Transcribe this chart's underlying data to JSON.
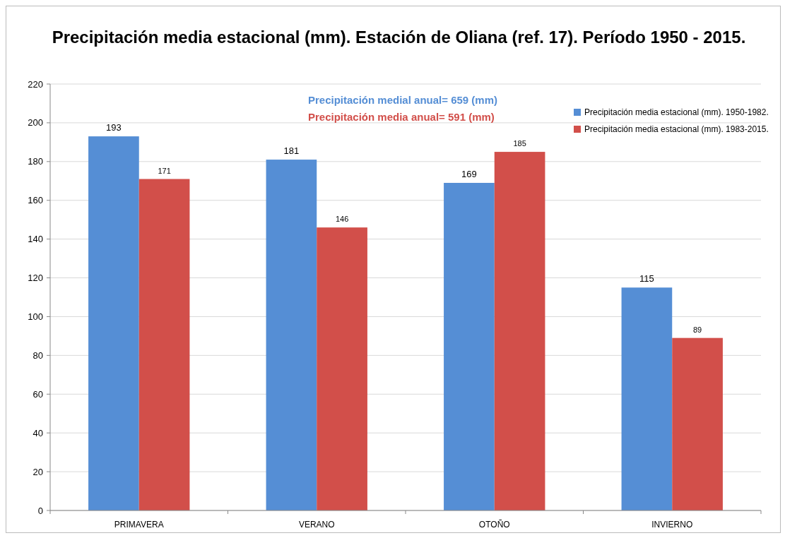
{
  "chart_data": {
    "type": "bar",
    "title": "Precipitación media estacional (mm). Estación de Oliana (ref. 17). Período 1950 - 2015.",
    "categories": [
      "PRIMAVERA",
      "VERANO",
      "OTOÑO",
      "INVIERNO"
    ],
    "series": [
      {
        "name": "Precipitación media estacional (mm). 1950-1982.",
        "color": "#558ed5",
        "values": [
          193,
          181,
          169,
          115
        ]
      },
      {
        "name": "Precipitación media estacional (mm). 1983-2015.",
        "color": "#d24f4a",
        "values": [
          171,
          146,
          185,
          89
        ]
      }
    ],
    "annotations": [
      "Precipitación medial anual= 659 (mm)",
      "Precipitación media anual= 591 (mm)"
    ],
    "ylim": [
      0,
      220
    ],
    "yticks": [
      0,
      20,
      40,
      60,
      80,
      100,
      120,
      140,
      160,
      180,
      200,
      220
    ],
    "grid": "y",
    "legend": "top right",
    "data_labels": true
  }
}
